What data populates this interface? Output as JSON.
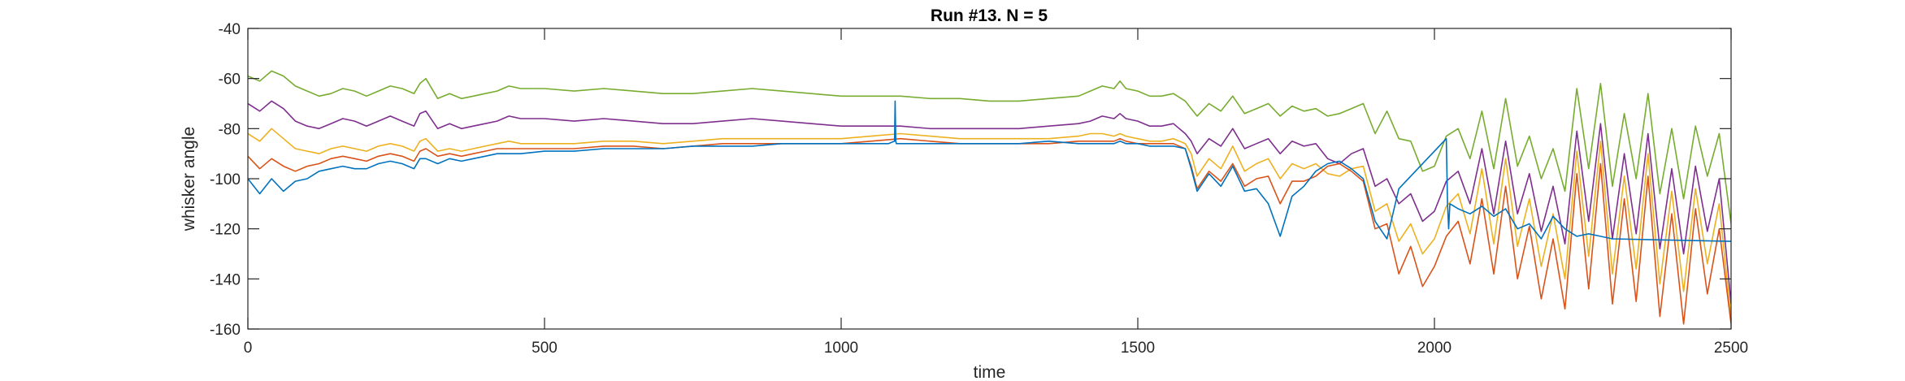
{
  "chart_data": {
    "type": "line",
    "title": "Run #13. N = 5",
    "xlabel": "time",
    "ylabel": "whisker angle",
    "xlim": [
      0,
      2500
    ],
    "ylim": [
      -160,
      -40
    ],
    "xticks": [
      0,
      500,
      1000,
      1500,
      2000,
      2500
    ],
    "yticks": [
      -160,
      -140,
      -120,
      -100,
      -80,
      -60,
      -40
    ],
    "grid": false,
    "box": true,
    "series": [
      {
        "color": "#77AC30",
        "x": [
          0,
          20,
          40,
          60,
          80,
          100,
          120,
          140,
          160,
          180,
          200,
          220,
          240,
          260,
          280,
          290,
          300,
          320,
          340,
          360,
          380,
          400,
          420,
          440,
          460,
          500,
          550,
          600,
          650,
          700,
          750,
          800,
          850,
          900,
          950,
          1000,
          1050,
          1100,
          1150,
          1200,
          1250,
          1300,
          1350,
          1400,
          1420,
          1440,
          1460,
          1470,
          1480,
          1500,
          1520,
          1540,
          1560,
          1580,
          1590,
          1600,
          1620,
          1640,
          1660,
          1680,
          1700,
          1720,
          1740,
          1760,
          1780,
          1800,
          1820,
          1840,
          1860,
          1880,
          1900,
          1920,
          1940,
          1960,
          1980,
          2000,
          2020,
          2040,
          2060,
          2080,
          2100,
          2120,
          2140,
          2160,
          2180,
          2200,
          2220,
          2240,
          2260,
          2280,
          2300,
          2320,
          2340,
          2360,
          2380,
          2400,
          2420,
          2440,
          2460,
          2480,
          2500
        ],
        "y": [
          -59,
          -61,
          -57,
          -59,
          -63,
          -65,
          -67,
          -66,
          -64,
          -65,
          -67,
          -65,
          -63,
          -64,
          -66,
          -62,
          -60,
          -68,
          -66,
          -68,
          -67,
          -66,
          -65,
          -63,
          -64,
          -64,
          -65,
          -64,
          -65,
          -66,
          -66,
          -65,
          -64,
          -65,
          -66,
          -67,
          -67,
          -67,
          -68,
          -68,
          -69,
          -69,
          -68,
          -67,
          -65,
          -63,
          -64,
          -61,
          -64,
          -65,
          -67,
          -67,
          -66,
          -69,
          -72,
          -75,
          -70,
          -73,
          -67,
          -74,
          -72,
          -70,
          -75,
          -71,
          -73,
          -72,
          -75,
          -74,
          -72,
          -70,
          -82,
          -73,
          -84,
          -85,
          -97,
          -95,
          -83,
          -80,
          -92,
          -73,
          -96,
          -68,
          -95,
          -83,
          -100,
          -88,
          -105,
          -64,
          -96,
          -62,
          -103,
          -74,
          -100,
          -66,
          -106,
          -80,
          -108,
          -79,
          -99,
          -82,
          -118
        ]
      },
      {
        "color": "#7E2F8E",
        "x": [
          0,
          20,
          40,
          60,
          80,
          100,
          120,
          140,
          160,
          180,
          200,
          220,
          240,
          260,
          280,
          290,
          300,
          320,
          340,
          360,
          380,
          400,
          420,
          440,
          460,
          500,
          550,
          600,
          650,
          700,
          750,
          800,
          850,
          900,
          950,
          1000,
          1050,
          1100,
          1150,
          1200,
          1250,
          1300,
          1350,
          1400,
          1420,
          1440,
          1460,
          1470,
          1480,
          1500,
          1520,
          1540,
          1560,
          1580,
          1590,
          1600,
          1620,
          1640,
          1660,
          1680,
          1700,
          1720,
          1740,
          1760,
          1780,
          1800,
          1820,
          1840,
          1860,
          1880,
          1900,
          1920,
          1940,
          1960,
          1980,
          2000,
          2020,
          2040,
          2060,
          2080,
          2100,
          2120,
          2140,
          2160,
          2180,
          2200,
          2220,
          2240,
          2260,
          2280,
          2300,
          2320,
          2340,
          2360,
          2380,
          2400,
          2420,
          2440,
          2460,
          2480,
          2500
        ],
        "y": [
          -70,
          -73,
          -69,
          -72,
          -77,
          -79,
          -80,
          -78,
          -76,
          -77,
          -79,
          -77,
          -75,
          -77,
          -79,
          -74,
          -73,
          -80,
          -78,
          -80,
          -79,
          -78,
          -77,
          -75,
          -76,
          -76,
          -77,
          -76,
          -77,
          -78,
          -78,
          -77,
          -76,
          -77,
          -78,
          -79,
          -79,
          -79,
          -80,
          -80,
          -80,
          -80,
          -79,
          -78,
          -77,
          -75,
          -76,
          -74,
          -76,
          -77,
          -79,
          -79,
          -78,
          -82,
          -85,
          -90,
          -84,
          -87,
          -80,
          -88,
          -86,
          -84,
          -90,
          -85,
          -87,
          -86,
          -92,
          -94,
          -90,
          -88,
          -103,
          -100,
          -110,
          -106,
          -117,
          -113,
          -101,
          -97,
          -110,
          -88,
          -114,
          -85,
          -114,
          -98,
          -121,
          -103,
          -126,
          -81,
          -117,
          -78,
          -124,
          -90,
          -122,
          -82,
          -128,
          -96,
          -130,
          -95,
          -121,
          -100,
          -150
        ]
      },
      {
        "color": "#EDB120",
        "x": [
          0,
          20,
          40,
          60,
          80,
          100,
          120,
          140,
          160,
          180,
          200,
          220,
          240,
          260,
          280,
          290,
          300,
          320,
          340,
          360,
          380,
          400,
          420,
          440,
          460,
          500,
          550,
          600,
          650,
          700,
          750,
          800,
          850,
          900,
          950,
          1000,
          1050,
          1100,
          1150,
          1200,
          1250,
          1300,
          1350,
          1400,
          1420,
          1440,
          1460,
          1470,
          1480,
          1500,
          1520,
          1540,
          1560,
          1580,
          1590,
          1600,
          1620,
          1640,
          1660,
          1680,
          1700,
          1720,
          1740,
          1760,
          1780,
          1800,
          1820,
          1840,
          1860,
          1880,
          1900,
          1920,
          1940,
          1960,
          1980,
          2000,
          2020,
          2040,
          2060,
          2080,
          2100,
          2120,
          2140,
          2160,
          2180,
          2200,
          2220,
          2240,
          2260,
          2280,
          2300,
          2320,
          2340,
          2360,
          2380,
          2400,
          2420,
          2440,
          2460,
          2480,
          2500
        ],
        "y": [
          -82,
          -85,
          -80,
          -84,
          -88,
          -89,
          -90,
          -88,
          -87,
          -88,
          -89,
          -87,
          -86,
          -87,
          -89,
          -85,
          -84,
          -89,
          -88,
          -89,
          -88,
          -87,
          -86,
          -85,
          -86,
          -86,
          -86,
          -85,
          -85,
          -86,
          -85,
          -84,
          -84,
          -84,
          -84,
          -84,
          -83,
          -82,
          -83,
          -84,
          -84,
          -84,
          -84,
          -83,
          -82,
          -82,
          -83,
          -82,
          -83,
          -84,
          -85,
          -85,
          -84,
          -86,
          -90,
          -99,
          -92,
          -96,
          -87,
          -97,
          -94,
          -92,
          -100,
          -94,
          -96,
          -94,
          -98,
          -99,
          -96,
          -95,
          -113,
          -110,
          -125,
          -118,
          -130,
          -124,
          -111,
          -106,
          -122,
          -96,
          -126,
          -92,
          -127,
          -108,
          -135,
          -114,
          -140,
          -89,
          -131,
          -85,
          -138,
          -99,
          -136,
          -90,
          -142,
          -105,
          -145,
          -104,
          -134,
          -110,
          -156
        ]
      },
      {
        "color": "#D95319",
        "x": [
          0,
          20,
          40,
          60,
          80,
          100,
          120,
          140,
          160,
          180,
          200,
          220,
          240,
          260,
          280,
          290,
          300,
          320,
          340,
          360,
          380,
          400,
          420,
          440,
          460,
          500,
          550,
          600,
          650,
          700,
          750,
          800,
          850,
          900,
          950,
          1000,
          1050,
          1100,
          1150,
          1200,
          1250,
          1300,
          1350,
          1400,
          1420,
          1440,
          1460,
          1470,
          1480,
          1500,
          1520,
          1540,
          1560,
          1580,
          1590,
          1600,
          1620,
          1640,
          1660,
          1680,
          1700,
          1720,
          1740,
          1760,
          1780,
          1800,
          1820,
          1840,
          1860,
          1880,
          1900,
          1920,
          1940,
          1960,
          1980,
          2000,
          2020,
          2040,
          2060,
          2080,
          2100,
          2120,
          2140,
          2160,
          2180,
          2200,
          2220,
          2240,
          2260,
          2280,
          2300,
          2320,
          2340,
          2360,
          2380,
          2400,
          2420,
          2440,
          2460,
          2480,
          2500
        ],
        "y": [
          -91,
          -96,
          -92,
          -95,
          -97,
          -95,
          -94,
          -92,
          -91,
          -92,
          -93,
          -91,
          -90,
          -91,
          -93,
          -89,
          -88,
          -91,
          -90,
          -91,
          -90,
          -89,
          -88,
          -88,
          -88,
          -88,
          -88,
          -87,
          -87,
          -88,
          -87,
          -86,
          -86,
          -86,
          -86,
          -86,
          -85,
          -84,
          -85,
          -86,
          -86,
          -86,
          -86,
          -85,
          -85,
          -85,
          -85,
          -84,
          -85,
          -86,
          -86,
          -86,
          -86,
          -88,
          -95,
          -104,
          -97,
          -101,
          -94,
          -103,
          -100,
          -99,
          -110,
          -101,
          -101,
          -99,
          -95,
          -94,
          -97,
          -101,
          -120,
          -118,
          -138,
          -127,
          -143,
          -135,
          -123,
          -117,
          -134,
          -108,
          -138,
          -103,
          -140,
          -119,
          -148,
          -124,
          -152,
          -98,
          -144,
          -94,
          -150,
          -108,
          -149,
          -99,
          -155,
          -114,
          -158,
          -112,
          -146,
          -120,
          -158
        ]
      },
      {
        "color": "#0072BD",
        "x": [
          0,
          20,
          40,
          60,
          80,
          100,
          120,
          140,
          160,
          180,
          200,
          220,
          240,
          260,
          280,
          290,
          300,
          320,
          340,
          360,
          380,
          400,
          420,
          440,
          460,
          500,
          550,
          600,
          650,
          700,
          750,
          800,
          850,
          900,
          950,
          1000,
          1050,
          1080,
          1090,
          1091,
          1092,
          1093,
          1100,
          1150,
          1200,
          1250,
          1300,
          1350,
          1400,
          1420,
          1440,
          1460,
          1470,
          1480,
          1500,
          1520,
          1540,
          1560,
          1580,
          1590,
          1600,
          1620,
          1640,
          1660,
          1680,
          1700,
          1720,
          1740,
          1760,
          1780,
          1800,
          1820,
          1840,
          1860,
          1880,
          1900,
          1920,
          1940,
          2020,
          2022,
          2024,
          2026,
          2040,
          2060,
          2080,
          2100,
          2120,
          2140,
          2160,
          2180,
          2200,
          2220,
          2240,
          2260,
          2280,
          2300,
          2500
        ],
        "y": [
          -100,
          -106,
          -100,
          -105,
          -101,
          -100,
          -97,
          -96,
          -95,
          -96,
          -96,
          -94,
          -93,
          -94,
          -96,
          -92,
          -92,
          -94,
          -92,
          -93,
          -92,
          -91,
          -90,
          -90,
          -90,
          -89,
          -89,
          -88,
          -88,
          -88,
          -87,
          -87,
          -87,
          -86,
          -86,
          -86,
          -86,
          -86,
          -85,
          -69,
          -85,
          -86,
          -86,
          -86,
          -86,
          -86,
          -86,
          -85,
          -86,
          -86,
          -86,
          -86,
          -85,
          -86,
          -86,
          -87,
          -87,
          -87,
          -88,
          -96,
          -105,
          -98,
          -103,
          -95,
          -105,
          -104,
          -110,
          -123,
          -107,
          -103,
          -97,
          -94,
          -93,
          -96,
          -100,
          -117,
          -124,
          -104,
          -84,
          -110,
          -120,
          -110,
          -112,
          -114,
          -111,
          -115,
          -112,
          -120,
          -118,
          -124,
          -115,
          -120,
          -123,
          -122,
          -123,
          -124,
          -125
        ]
      }
    ]
  }
}
